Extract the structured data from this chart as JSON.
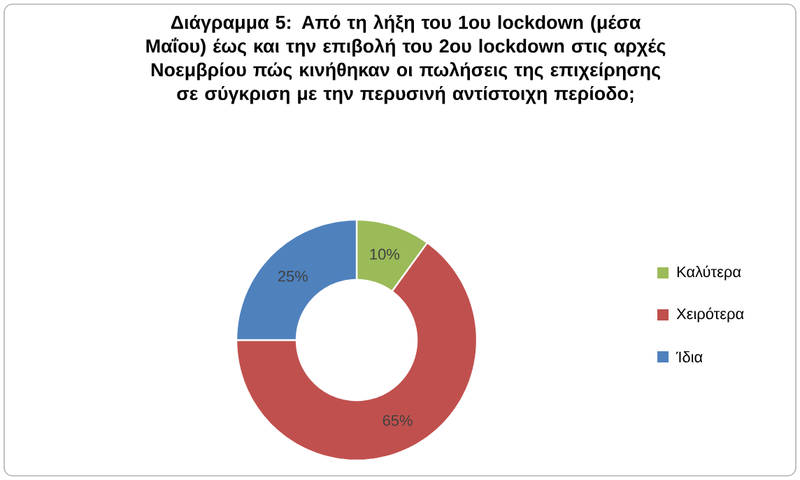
{
  "chart_data": {
    "type": "donut",
    "title": "**Διάγραμμα 5: Από τη λήξη του 1ου lockdown (μέσα Μαΐου) έως και την επιβολή του 2ου lockdown στις αρχές Νοεμβρίου πώς κινήθηκαν οι πωλήσεις της επιχείρησης σε σύγκριση με την περυσινή αντίστοιχη περίοδο;**",
    "categories": [
      "Καλύτερα",
      "Χειρότερα",
      "Ίδια"
    ],
    "values": [
      10,
      65,
      25
    ],
    "colors": [
      "#9bbb59",
      "#c0504d",
      "#4f81bd"
    ],
    "value_labels": [
      "10%",
      "65%",
      "25%"
    ],
    "legend": "right"
  }
}
